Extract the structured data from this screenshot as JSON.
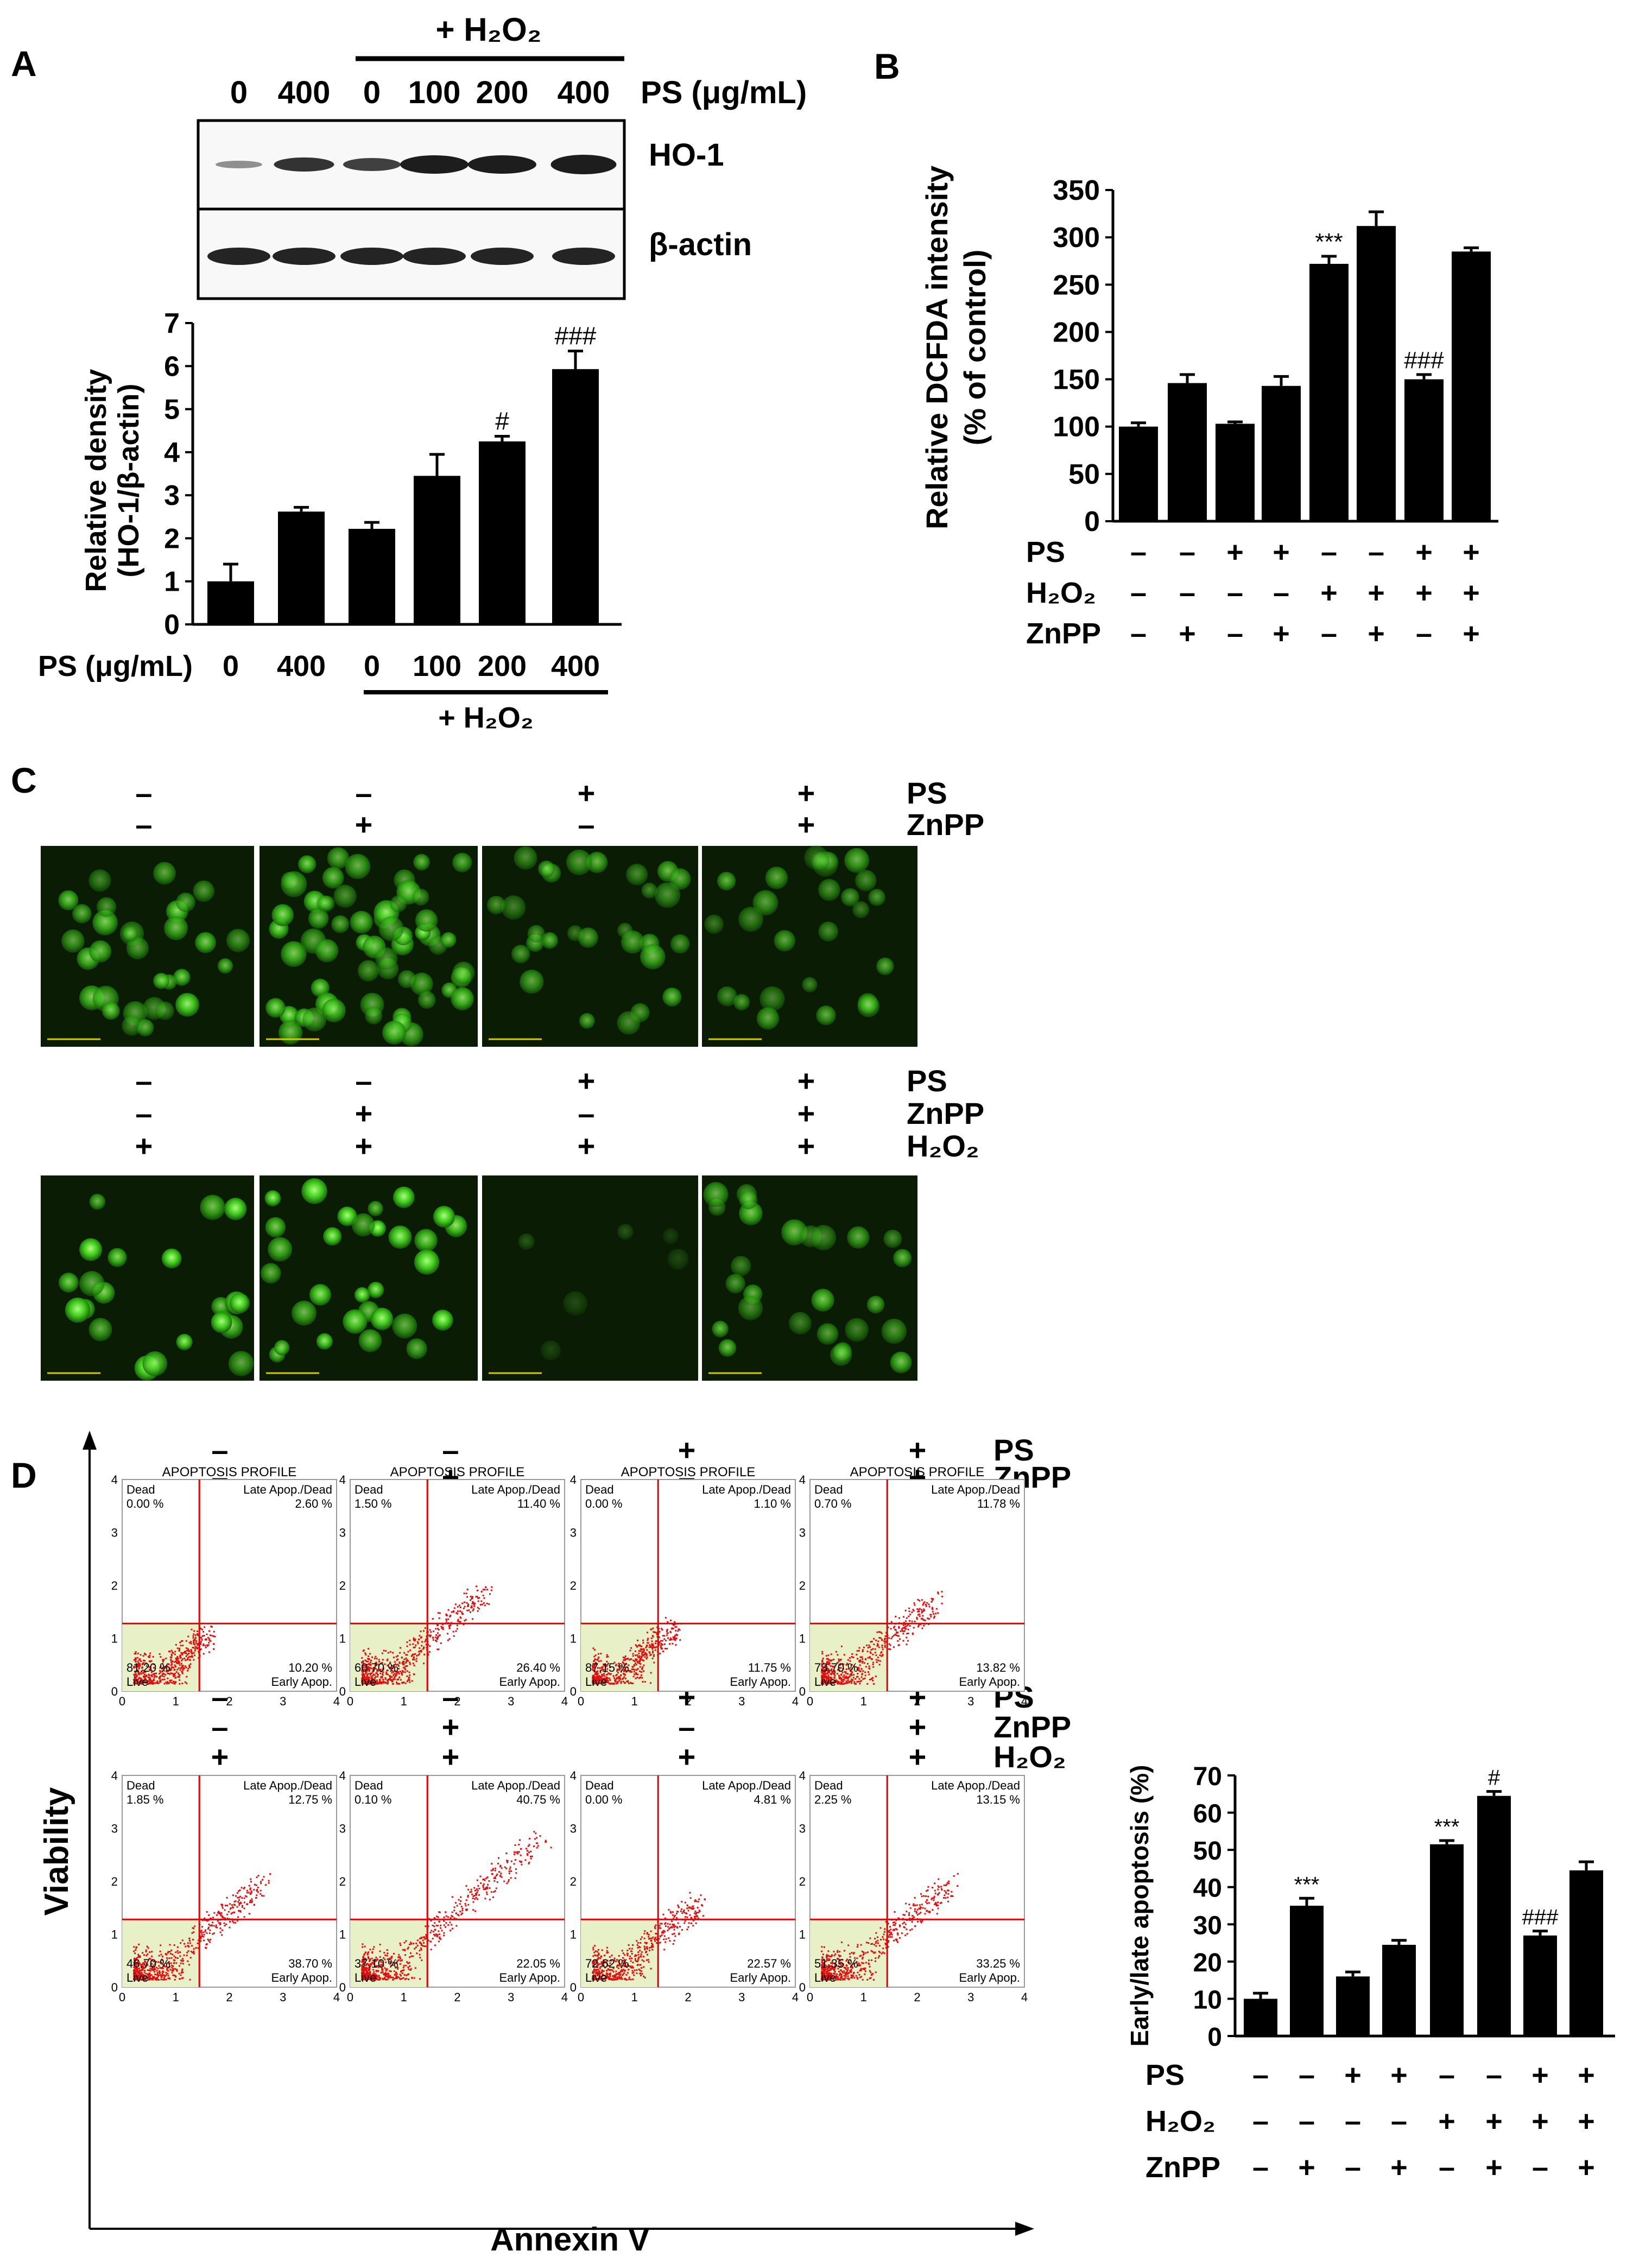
{
  "panels": {
    "A": {
      "letter": "A",
      "h2o2_label": "+ H₂O₂",
      "lane_labels": [
        "0",
        "400",
        "0",
        "100",
        "200",
        "400"
      ],
      "ps_unit_label": "PS (μg/mL)",
      "blot_labels": [
        "HO-1",
        "β-actin"
      ]
    },
    "B": {
      "letter": "B"
    },
    "C": {
      "letter": "C",
      "row1": {
        "PS": [
          "–",
          "–",
          "+",
          "+"
        ],
        "ZnPP": [
          "–",
          "+",
          "–",
          "+"
        ]
      },
      "row2": {
        "PS": [
          "–",
          "–",
          "+",
          "+"
        ],
        "ZnPP": [
          "–",
          "+",
          "–",
          "+"
        ],
        "H2O2": [
          "+",
          "+",
          "+",
          "+"
        ]
      },
      "row_labels": [
        "PS",
        "ZnPP",
        "H₂O₂"
      ]
    },
    "D": {
      "letter": "D",
      "y_axis": "Viability",
      "x_axis": "Annexin V",
      "plot_title": "APOPTOSIS PROFILE",
      "quadrant_labels": {
        "dead": "Dead",
        "late": "Late Apop./Dead",
        "live": "Live",
        "early": "Early Apop."
      },
      "axis_ticks": [
        "0",
        "1",
        "2",
        "3",
        "4"
      ],
      "row1": {
        "PS": [
          "–",
          "–",
          "+",
          "+"
        ],
        "ZnPP": [
          "–",
          "+",
          "–",
          "+"
        ]
      },
      "row2": {
        "PS": [
          "–",
          "–",
          "+",
          "+"
        ],
        "ZnPP": [
          "–",
          "+",
          "–",
          "+"
        ],
        "H2O2": [
          "+",
          "+",
          "+",
          "+"
        ]
      },
      "row_labels": [
        "PS",
        "ZnPP",
        "H₂O₂"
      ],
      "plots": [
        {
          "dead": "0.00 %",
          "late": "2.60 %",
          "live": "81.20 %",
          "early": "10.20 %"
        },
        {
          "dead": "1.50 %",
          "late": "11.40 %",
          "live": "60.70 %",
          "early": "26.40 %"
        },
        {
          "dead": "0.00 %",
          "late": "1.10 %",
          "live": "87.15 %",
          "early": "11.75 %"
        },
        {
          "dead": "0.70 %",
          "late": "11.78 %",
          "live": "73.70 %",
          "early": "13.82 %"
        },
        {
          "dead": "1.85 %",
          "late": "12.75 %",
          "live": "46.70 %",
          "early": "38.70 %"
        },
        {
          "dead": "0.10 %",
          "late": "40.75 %",
          "live": "37.10 %",
          "early": "22.05 %"
        },
        {
          "dead": "0.00 %",
          "late": "4.81 %",
          "live": "72.62 %",
          "early": "22.57 %"
        },
        {
          "dead": "2.25 %",
          "late": "13.15 %",
          "live": "51.35 %",
          "early": "33.25 %"
        }
      ]
    }
  },
  "chart_data": [
    {
      "panel": "A",
      "type": "bar",
      "categories": [
        "0",
        "400",
        "0",
        "100",
        "200",
        "400"
      ],
      "values": [
        1.0,
        2.62,
        2.22,
        3.45,
        4.25,
        5.93
      ],
      "errors": [
        0.4,
        0.1,
        0.15,
        0.5,
        0.12,
        0.42
      ],
      "annotations": [
        "",
        "",
        "",
        "",
        "#",
        "###"
      ],
      "ylabel_line1": "Relative density",
      "ylabel_line2": "(HO-1/β-actin)",
      "xlabel_prefix": "PS (μg/mL)",
      "group_label": "+ H₂O₂",
      "ylim": [
        0,
        7
      ],
      "yticks": [
        0,
        1,
        2,
        3,
        4,
        5,
        6,
        7
      ]
    },
    {
      "panel": "B",
      "type": "bar",
      "values": [
        100,
        146,
        103,
        143,
        272,
        312,
        150,
        285
      ],
      "errors": [
        4,
        9,
        2,
        10,
        8,
        15,
        5,
        4
      ],
      "annotations": [
        "",
        "",
        "",
        "",
        "***",
        "",
        "###",
        ""
      ],
      "ylabel_line1": "Relative DCFDA intensity",
      "ylabel_line2": "(% of control)",
      "ylim": [
        0,
        350
      ],
      "yticks": [
        0,
        50,
        100,
        150,
        200,
        250,
        300,
        350
      ],
      "conditions": {
        "PS": [
          "–",
          "–",
          "+",
          "+",
          "–",
          "–",
          "+",
          "+"
        ],
        "H₂O₂": [
          "–",
          "–",
          "–",
          "–",
          "+",
          "+",
          "+",
          "+"
        ],
        "ZnPP": [
          "–",
          "+",
          "–",
          "+",
          "–",
          "+",
          "–",
          "+"
        ]
      }
    },
    {
      "panel": "D",
      "type": "bar",
      "values": [
        10,
        35,
        16,
        24.5,
        51.5,
        64.5,
        27,
        44.5
      ],
      "errors": [
        1.5,
        2,
        1.2,
        1.2,
        1,
        1.2,
        1.2,
        2.3
      ],
      "annotations": [
        "",
        "***",
        "",
        "",
        "***",
        "#",
        "###",
        ""
      ],
      "ylabel": "Early/late apoptosis (%)",
      "ylim": [
        0,
        70
      ],
      "yticks": [
        0,
        10,
        20,
        30,
        40,
        50,
        60,
        70
      ],
      "conditions": {
        "PS": [
          "–",
          "–",
          "+",
          "+",
          "–",
          "–",
          "+",
          "+"
        ],
        "H₂O₂": [
          "–",
          "–",
          "–",
          "–",
          "+",
          "+",
          "+",
          "+"
        ],
        "ZnPP": [
          "–",
          "+",
          "–",
          "+",
          "–",
          "+",
          "–",
          "+"
        ]
      }
    }
  ]
}
